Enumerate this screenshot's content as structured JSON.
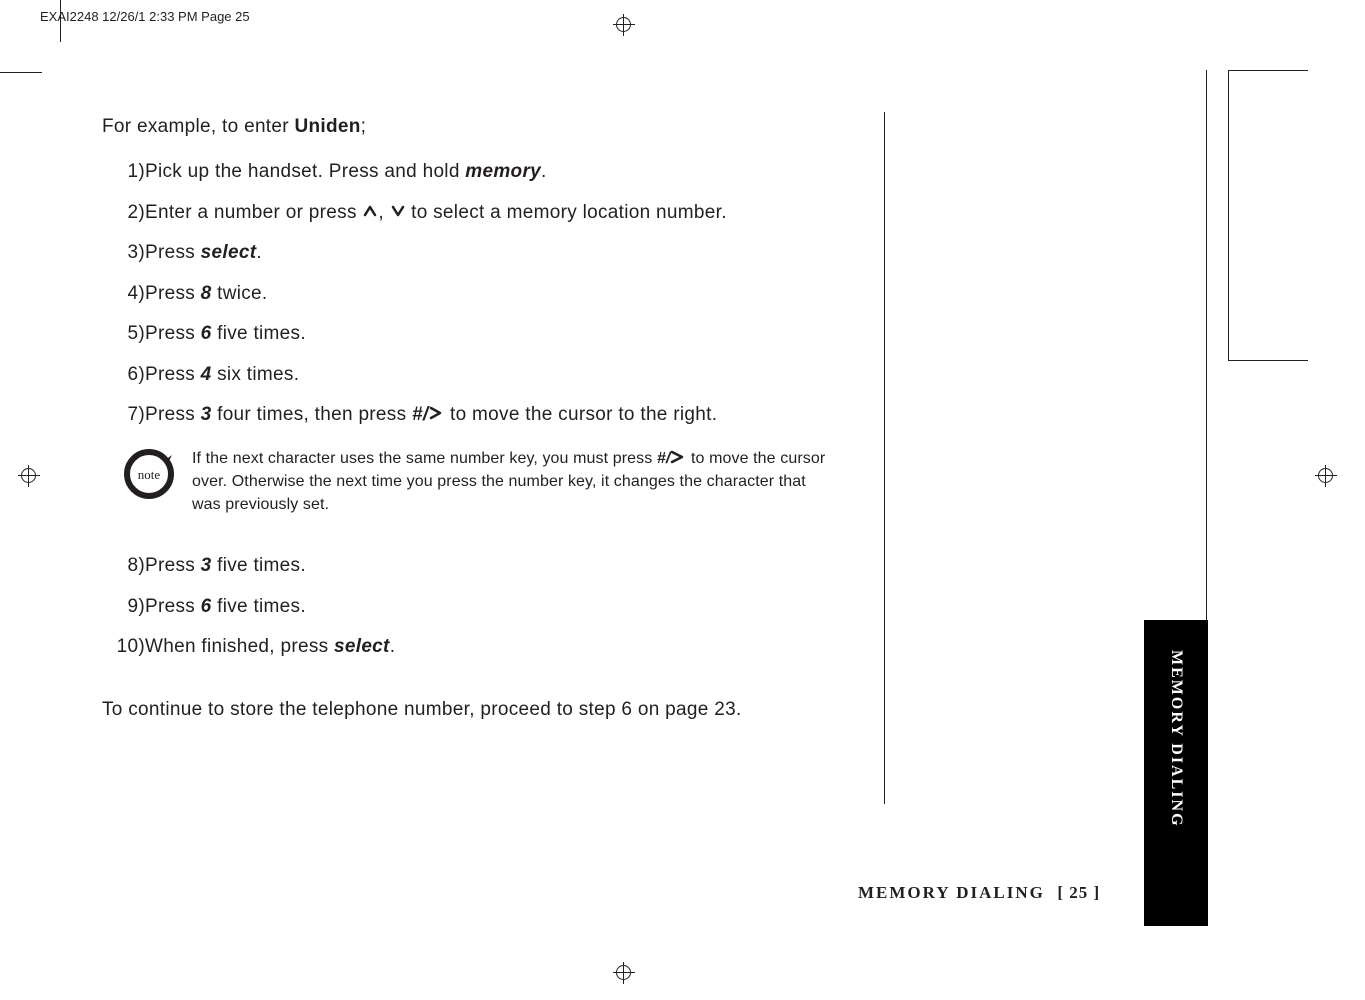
{
  "slug": "EXAI2248  12/26/1 2:33 PM  Page 25",
  "intro_prefix": "For example, to enter ",
  "intro_bold": "Uniden",
  "intro_suffix": ";",
  "steps_a": [
    {
      "n": "1)",
      "parts": [
        [
          "",
          "Pick up the handset. Press and hold "
        ],
        [
          "bi",
          "memory"
        ],
        [
          "",
          "."
        ]
      ]
    },
    {
      "n": "2)",
      "parts": [
        [
          "",
          "Enter a number or press "
        ],
        [
          "arrows",
          ""
        ],
        [
          "",
          " to select a memory location number."
        ]
      ]
    },
    {
      "n": "3)",
      "parts": [
        [
          "",
          "Press "
        ],
        [
          "bi",
          "select"
        ],
        [
          "",
          "."
        ]
      ]
    },
    {
      "n": "4)",
      "parts": [
        [
          "",
          "Press "
        ],
        [
          "bi",
          "8"
        ],
        [
          "",
          " twice."
        ]
      ]
    },
    {
      "n": "5)",
      "parts": [
        [
          "",
          "Press "
        ],
        [
          "bi",
          "6"
        ],
        [
          "",
          " five times."
        ]
      ]
    },
    {
      "n": "6)",
      "parts": [
        [
          "",
          "Press "
        ],
        [
          "bi",
          "4"
        ],
        [
          "",
          " six times."
        ]
      ]
    },
    {
      "n": "7)",
      "parts": [
        [
          "",
          "Press "
        ],
        [
          "bi",
          "3"
        ],
        [
          "",
          " four times, then press "
        ],
        [
          "bi",
          "#/"
        ],
        [
          "gt",
          ""
        ],
        [
          "",
          " to move the cursor to the right."
        ]
      ]
    }
  ],
  "note": {
    "line1_a": "If the next character uses the same number key, you must press ",
    "line1_b": "#/",
    "line1_c": " to move the cursor",
    "line2": "over. Otherwise the next time you press the number key, it changes the character that",
    "line3": "was previously set.",
    "icon_label": "note"
  },
  "steps_b": [
    {
      "n": "8)",
      "parts": [
        [
          "",
          "Press "
        ],
        [
          "bi",
          "3"
        ],
        [
          "",
          " five times."
        ]
      ]
    },
    {
      "n": "9)",
      "parts": [
        [
          "",
          "Press "
        ],
        [
          "bi",
          "6"
        ],
        [
          "",
          " five times."
        ]
      ]
    },
    {
      "n": "10)",
      "parts": [
        [
          "",
          "When finished, press "
        ],
        [
          "bi",
          "select"
        ],
        [
          "",
          "."
        ]
      ]
    }
  ],
  "closing": "To continue to store the telephone number, proceed to step 6 on page 23.",
  "footer_section": "MEMORY DIALING",
  "footer_page": "[ 25 ]",
  "tab_label": "MEMORY DIALING",
  "colors": {
    "ink": "#231f20",
    "bg": "#ffffff",
    "tab_bg": "#000000",
    "tab_fg": "#ffffff"
  }
}
